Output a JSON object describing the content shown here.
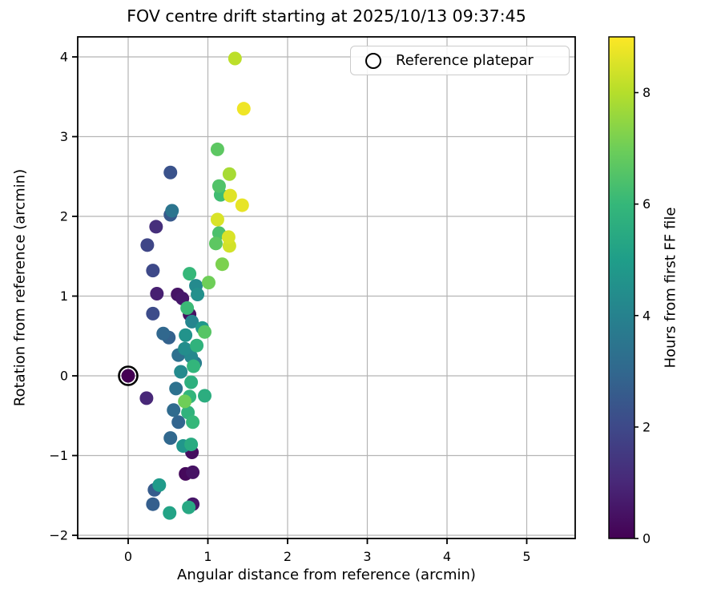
{
  "chart_data": {
    "type": "scatter",
    "title": "FOV centre drift starting at 2025/10/13 09:37:45",
    "xlabel": "Angular distance from reference (arcmin)",
    "ylabel": "Rotation from reference (arcmin)",
    "xlim": [
      -0.63,
      5.61
    ],
    "ylim": [
      -2.04,
      4.26
    ],
    "xticks": {
      "values": [
        0,
        1,
        2,
        3,
        4,
        5
      ],
      "labels": [
        "0",
        "1",
        "2",
        "3",
        "4",
        "5"
      ]
    },
    "yticks": {
      "values": [
        -2,
        -1,
        0,
        1,
        2,
        3,
        4
      ],
      "labels": [
        "−2",
        "−1",
        "0",
        "1",
        "2",
        "3",
        "4"
      ]
    },
    "grid": true,
    "grid_color": "#b5b5b5",
    "background": "#ffffff",
    "marker_radius_px": 8.5,
    "legend": {
      "label": "Reference platepar",
      "position": "upper right",
      "marker": "open-circle"
    },
    "reference_point": {
      "x": 0.0,
      "y": 0.0
    },
    "colorbar": {
      "label": "Hours from first FF file",
      "vmin": 0,
      "vmax": 9,
      "ticks": {
        "values": [
          0,
          2,
          4,
          6,
          8
        ],
        "labels": [
          "0",
          "2",
          "4",
          "6",
          "8"
        ]
      },
      "colormap": "viridis"
    },
    "viridis_stops": [
      "#440154",
      "#482878",
      "#3e4989",
      "#31688e",
      "#26828e",
      "#1f9e89",
      "#35b779",
      "#6ece58",
      "#b5de2b",
      "#fde725"
    ],
    "points_format": [
      "x_arcmin",
      "y_arcmin",
      "hours_from_first_ff"
    ],
    "points": [
      [
        1.34,
        3.98,
        8.1
      ],
      [
        1.45,
        3.35,
        8.8
      ],
      [
        1.12,
        2.84,
        6.7
      ],
      [
        0.53,
        2.55,
        2.3
      ],
      [
        1.27,
        2.53,
        7.8
      ],
      [
        1.14,
        2.38,
        6.5
      ],
      [
        1.16,
        2.27,
        6.2
      ],
      [
        1.28,
        2.26,
        8.6
      ],
      [
        1.43,
        2.14,
        8.7
      ],
      [
        0.55,
        2.07,
        3.5
      ],
      [
        0.53,
        2.02,
        2.5
      ],
      [
        1.12,
        1.96,
        8.5
      ],
      [
        0.35,
        1.87,
        1.2
      ],
      [
        1.14,
        1.79,
        6.4
      ],
      [
        1.26,
        1.74,
        8.5
      ],
      [
        1.27,
        1.63,
        8.4
      ],
      [
        1.1,
        1.66,
        6.7
      ],
      [
        0.24,
        1.64,
        1.9
      ],
      [
        1.18,
        1.4,
        7.2
      ],
      [
        0.31,
        1.32,
        2.0
      ],
      [
        0.77,
        1.28,
        6.0
      ],
      [
        1.01,
        1.17,
        7.0
      ],
      [
        0.85,
        1.13,
        4.3
      ],
      [
        0.87,
        1.02,
        4.5
      ],
      [
        0.36,
        1.03,
        0.8
      ],
      [
        0.62,
        1.02,
        0.5
      ],
      [
        0.68,
        0.97,
        0.6
      ],
      [
        0.74,
        0.85,
        6.1
      ],
      [
        0.77,
        0.77,
        0.4
      ],
      [
        0.31,
        0.78,
        2.1
      ],
      [
        0.8,
        0.68,
        4.1
      ],
      [
        0.93,
        0.6,
        4.8
      ],
      [
        0.96,
        0.55,
        6.6
      ],
      [
        0.44,
        0.53,
        3.0
      ],
      [
        0.51,
        0.48,
        2.8
      ],
      [
        0.72,
        0.51,
        4.6
      ],
      [
        0.86,
        0.38,
        5.8
      ],
      [
        0.71,
        0.34,
        4.4
      ],
      [
        0.63,
        0.26,
        3.3
      ],
      [
        0.79,
        0.24,
        4.2
      ],
      [
        0.84,
        0.16,
        3.8
      ],
      [
        0.82,
        0.12,
        5.9
      ],
      [
        0.66,
        0.05,
        4.3
      ],
      [
        0.0,
        0.0,
        0.0
      ],
      [
        0.6,
        -0.16,
        3.4
      ],
      [
        0.79,
        -0.08,
        5.7
      ],
      [
        0.96,
        -0.25,
        5.6
      ],
      [
        0.77,
        -0.26,
        5.9
      ],
      [
        0.71,
        -0.32,
        7.0
      ],
      [
        0.23,
        -0.28,
        1.0
      ],
      [
        0.57,
        -0.43,
        3.1
      ],
      [
        0.75,
        -0.46,
        5.8
      ],
      [
        0.63,
        -0.58,
        2.9
      ],
      [
        0.81,
        -0.58,
        6.0
      ],
      [
        0.53,
        -0.78,
        3.0
      ],
      [
        0.69,
        -0.88,
        4.7
      ],
      [
        0.79,
        -0.86,
        5.5
      ],
      [
        0.8,
        -0.96,
        0.3
      ],
      [
        0.72,
        -1.23,
        0.2
      ],
      [
        0.81,
        -1.21,
        0.45
      ],
      [
        0.39,
        -1.37,
        4.9
      ],
      [
        0.33,
        -1.43,
        2.6
      ],
      [
        0.31,
        -1.61,
        2.7
      ],
      [
        0.52,
        -1.72,
        5.2
      ],
      [
        0.76,
        -1.65,
        5.4
      ],
      [
        0.81,
        -1.61,
        0.55
      ]
    ]
  }
}
